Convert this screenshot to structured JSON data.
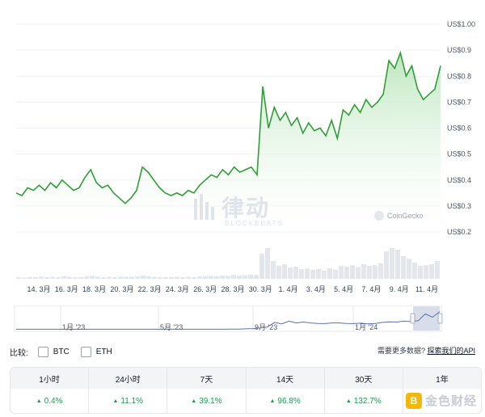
{
  "chart_data": {
    "type": "line",
    "y_axis": {
      "ticks": [
        "US$1.00",
        "US$0.9",
        "US$0.8",
        "US$0.7",
        "US$0.6",
        "US$0.5",
        "US$0.4",
        "US$0.3",
        "US$0.2"
      ],
      "range": [
        0.2,
        1.0
      ]
    },
    "x_axis": {
      "ticks": [
        "14. 3月",
        "16. 3月",
        "18. 3月",
        "20. 3月",
        "22. 3月",
        "24. 3月",
        "26. 3月",
        "28. 3月",
        "30. 3月",
        "1. 4月",
        "3. 4月",
        "5. 4月",
        "7. 4月",
        "9. 4月",
        "11. 4月"
      ]
    },
    "series": [
      {
        "values": [
          0.35,
          0.34,
          0.37,
          0.36,
          0.38,
          0.36,
          0.39,
          0.37,
          0.4,
          0.38,
          0.36,
          0.37,
          0.41,
          0.44,
          0.39,
          0.37,
          0.38,
          0.35,
          0.33,
          0.31,
          0.33,
          0.36,
          0.45,
          0.43,
          0.4,
          0.37,
          0.35,
          0.34,
          0.35,
          0.34,
          0.36,
          0.35,
          0.38,
          0.4,
          0.42,
          0.41,
          0.44,
          0.42,
          0.45,
          0.43,
          0.44,
          0.45,
          0.42,
          0.76,
          0.6,
          0.68,
          0.63,
          0.66,
          0.61,
          0.64,
          0.58,
          0.62,
          0.59,
          0.6,
          0.57,
          0.63,
          0.56,
          0.67,
          0.65,
          0.69,
          0.66,
          0.71,
          0.68,
          0.7,
          0.73,
          0.86,
          0.83,
          0.89,
          0.8,
          0.84,
          0.75,
          0.71,
          0.73,
          0.75,
          0.84
        ]
      }
    ],
    "volume": [
      0.05,
      0.04,
      0.06,
      0.05,
      0.07,
      0.05,
      0.06,
      0.05,
      0.08,
      0.06,
      0.05,
      0.05,
      0.07,
      0.09,
      0.06,
      0.05,
      0.06,
      0.05,
      0.07,
      0.06,
      0.06,
      0.07,
      0.1,
      0.08,
      0.06,
      0.05,
      0.05,
      0.05,
      0.06,
      0.05,
      0.06,
      0.05,
      0.07,
      0.08,
      0.09,
      0.08,
      0.1,
      0.09,
      0.12,
      0.1,
      0.11,
      0.13,
      0.12,
      0.78,
      0.95,
      0.55,
      0.4,
      0.45,
      0.35,
      0.38,
      0.3,
      0.32,
      0.28,
      0.3,
      0.25,
      0.33,
      0.28,
      0.4,
      0.38,
      0.42,
      0.36,
      0.45,
      0.4,
      0.42,
      0.48,
      0.85,
      0.95,
      0.9,
      0.7,
      0.62,
      0.5,
      0.4,
      0.42,
      0.45,
      0.55
    ],
    "navigator": {
      "ticks": [
        "1月 '23",
        "5月 '23",
        "9月 '23",
        "1月 '24"
      ],
      "values": [
        0.02,
        0.02,
        0.02,
        0.02,
        0.02,
        0.02,
        0.02,
        0.02,
        0.02,
        0.02,
        0.02,
        0.02,
        0.02,
        0.02,
        0.02,
        0.02,
        0.02,
        0.02,
        0.02,
        0.02,
        0.02,
        0.02,
        0.02,
        0.02,
        0.02,
        0.02,
        0.02,
        0.02,
        0.02,
        0.02,
        0.03,
        0.03,
        0.04,
        0.05,
        0.08,
        0.12,
        0.32,
        0.26,
        0.38,
        0.3,
        0.34,
        0.3,
        0.28,
        0.27,
        0.3,
        0.3,
        0.28,
        0.27,
        0.29,
        0.26,
        0.28,
        0.32,
        0.35,
        0.34,
        0.38,
        0.36,
        0.4,
        0.7,
        0.55,
        0.8
      ]
    },
    "grid": "horizontal"
  },
  "watermark": {
    "zh": "律动",
    "en": "BLOCKBEATS"
  },
  "credit": "CoinGecko",
  "compare": {
    "label": "比较:",
    "options": [
      "BTC",
      "ETH"
    ],
    "more_prefix": "需要更多数据?",
    "more_link": "探索我们的API"
  },
  "performance": {
    "headers": [
      "1小时",
      "24小时",
      "7天",
      "14天",
      "30天",
      "1年"
    ],
    "values": [
      "0.4%",
      "11.1%",
      "39.1%",
      "96.8%",
      "132.7%",
      ""
    ]
  },
  "corner_logo": "金色财经",
  "colors": {
    "line": "#2f9e35",
    "fill_top": "#b7e4b8",
    "volume": "#e3e6ea",
    "nav_line": "#5b6fb0",
    "nav_window": "#d7dde9"
  }
}
